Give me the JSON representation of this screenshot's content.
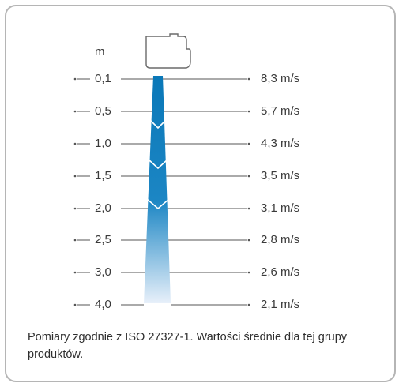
{
  "diagram": {
    "unit_label": "m",
    "rows": [
      {
        "distance": "0,1",
        "speed": "8,3 m/s"
      },
      {
        "distance": "0,5",
        "speed": "5,7 m/s"
      },
      {
        "distance": "1,0",
        "speed": "4,3 m/s"
      },
      {
        "distance": "1,5",
        "speed": "3,5 m/s"
      },
      {
        "distance": "2,0",
        "speed": "3,1 m/s"
      },
      {
        "distance": "2,5",
        "speed": "2,8 m/s"
      },
      {
        "distance": "3,0",
        "speed": "2,6 m/s"
      },
      {
        "distance": "4,0",
        "speed": "2,1 m/s"
      }
    ],
    "caption": "Pomiary zgodnie z ISO 27327-1. Wartości średnie dla tej grupy produktów.",
    "colors": {
      "jet_top": "#0a78b8",
      "jet_bottom": "#e6eef8",
      "line": "#555555",
      "border": "#b5b5b5"
    }
  }
}
